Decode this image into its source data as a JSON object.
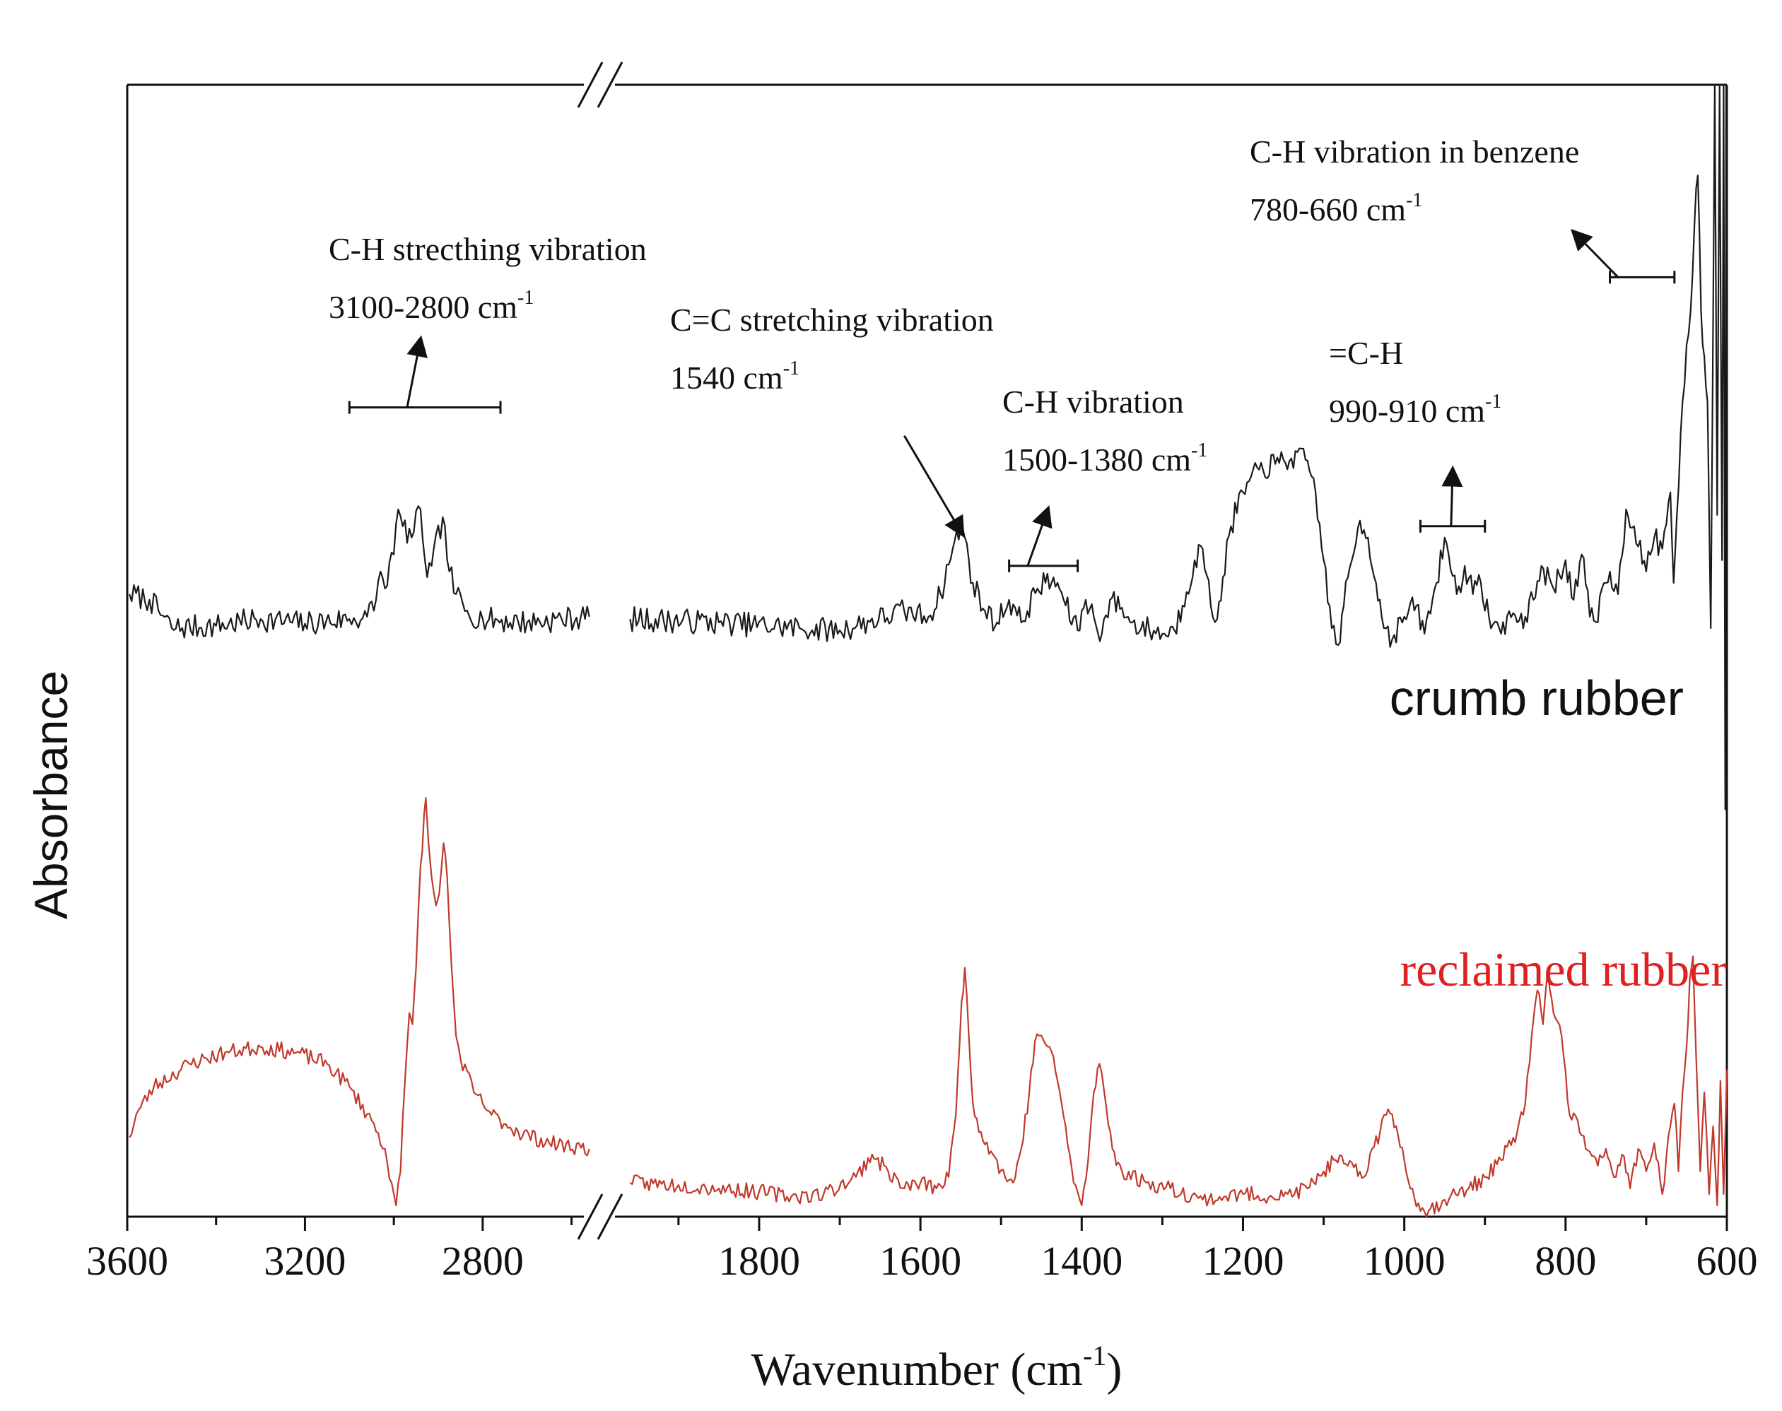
{
  "chart_data": {
    "type": "line",
    "xlabel": "Wavenumber (cm",
    "xlabel_sup": "-1",
    "xlabel_close": ")",
    "ylabel": "Absorbance",
    "x_reversed": true,
    "axis_break": {
      "from": 2550,
      "to": 1970
    },
    "x_segments": [
      [
        3600,
        2550
      ],
      [
        1970,
        600
      ]
    ],
    "x_ticks": [
      {
        "value": 3600,
        "label": "3600"
      },
      {
        "value": 3200,
        "label": "3200"
      },
      {
        "value": 2800,
        "label": "2800"
      },
      {
        "value": 1800,
        "label": "1800"
      },
      {
        "value": 1600,
        "label": "1600"
      },
      {
        "value": 1400,
        "label": "1400"
      },
      {
        "value": 1200,
        "label": "1200"
      },
      {
        "value": 1000,
        "label": "1000"
      },
      {
        "value": 800,
        "label": "800"
      },
      {
        "value": 600,
        "label": "600"
      }
    ],
    "minor_ticks": [
      3400,
      3000,
      2600,
      1900,
      1700,
      1500,
      1300,
      1100,
      900,
      700
    ],
    "ylim": [
      0,
      100
    ],
    "series": [
      {
        "name": "crumb rubber",
        "label": "crumb rubber",
        "color": "#1a1a1a",
        "noise": 1.1,
        "seed": 7,
        "points": [
          [
            3595,
            55.0
          ],
          [
            3550,
            54.5
          ],
          [
            3500,
            52.0
          ],
          [
            3400,
            52.2
          ],
          [
            3300,
            52.8
          ],
          [
            3200,
            52.4
          ],
          [
            3100,
            52.8
          ],
          [
            3060,
            53.0
          ],
          [
            3040,
            54.5
          ],
          [
            3030,
            57.0
          ],
          [
            3020,
            55.5
          ],
          [
            3010,
            57.8
          ],
          [
            3000,
            58.5
          ],
          [
            2990,
            62.5
          ],
          [
            2980,
            61.0
          ],
          [
            2960,
            60.0
          ],
          [
            2940,
            62.5
          ],
          [
            2925,
            56.5
          ],
          [
            2915,
            57.5
          ],
          [
            2890,
            61.8
          ],
          [
            2875,
            57.0
          ],
          [
            2860,
            55.0
          ],
          [
            2840,
            53.5
          ],
          [
            2800,
            52.8
          ],
          [
            2700,
            52.5
          ],
          [
            2560,
            53.0
          ],
          null,
          [
            1960,
            52.8
          ],
          [
            1850,
            52.5
          ],
          [
            1750,
            52.0
          ],
          [
            1700,
            51.8
          ],
          [
            1620,
            53.5
          ],
          [
            1590,
            53.0
          ],
          [
            1575,
            55.0
          ],
          [
            1560,
            59.0
          ],
          [
            1550,
            61.0
          ],
          [
            1545,
            60.0
          ],
          [
            1535,
            56.0
          ],
          [
            1520,
            53.5
          ],
          [
            1505,
            52.5
          ],
          [
            1490,
            54.5
          ],
          [
            1475,
            52.5
          ],
          [
            1455,
            55.5
          ],
          [
            1445,
            56.0
          ],
          [
            1430,
            56.0
          ],
          [
            1420,
            54.0
          ],
          [
            1405,
            51.8
          ],
          [
            1395,
            54.5
          ],
          [
            1385,
            53.0
          ],
          [
            1375,
            51.5
          ],
          [
            1365,
            54.5
          ],
          [
            1350,
            53.8
          ],
          [
            1340,
            52.5
          ],
          [
            1300,
            51.5
          ],
          [
            1285,
            51.8
          ],
          [
            1275,
            54.0
          ],
          [
            1260,
            58.0
          ],
          [
            1250,
            59.0
          ],
          [
            1240,
            54.0
          ],
          [
            1232,
            52.8
          ],
          [
            1225,
            56.5
          ],
          [
            1215,
            61.0
          ],
          [
            1200,
            64.0
          ],
          [
            1180,
            66.0
          ],
          [
            1160,
            66.5
          ],
          [
            1140,
            67.0
          ],
          [
            1120,
            66.8
          ],
          [
            1110,
            64.0
          ],
          [
            1100,
            58.0
          ],
          [
            1090,
            52.0
          ],
          [
            1082,
            50.5
          ],
          [
            1075,
            54.0
          ],
          [
            1065,
            58.0
          ],
          [
            1055,
            61.5
          ],
          [
            1045,
            60.0
          ],
          [
            1035,
            56.0
          ],
          [
            1028,
            53.0
          ],
          [
            1015,
            51.0
          ],
          [
            1000,
            53.0
          ],
          [
            985,
            54.0
          ],
          [
            975,
            51.5
          ],
          [
            960,
            56.0
          ],
          [
            950,
            60.0
          ],
          [
            945,
            58.5
          ],
          [
            935,
            55.0
          ],
          [
            925,
            57.5
          ],
          [
            915,
            55.0
          ],
          [
            905,
            56.0
          ],
          [
            895,
            53.0
          ],
          [
            880,
            51.5
          ],
          [
            870,
            53.5
          ],
          [
            860,
            52.5
          ],
          [
            850,
            53.0
          ],
          [
            840,
            54.5
          ],
          [
            830,
            57.5
          ],
          [
            815,
            55.5
          ],
          [
            800,
            58.0
          ],
          [
            790,
            54.5
          ],
          [
            780,
            58.5
          ],
          [
            770,
            53.0
          ],
          [
            760,
            52.5
          ],
          [
            755,
            55.5
          ],
          [
            745,
            57.0
          ],
          [
            735,
            55.0
          ],
          [
            725,
            62.5
          ],
          [
            715,
            61.0
          ],
          [
            700,
            57.0
          ],
          [
            690,
            60.0
          ],
          [
            680,
            59.0
          ],
          [
            670,
            64.0
          ],
          [
            666,
            56.0
          ],
          [
            662,
            62.0
          ],
          [
            655,
            72.0
          ],
          [
            645,
            80.0
          ],
          [
            640,
            88.0
          ],
          [
            636,
            92.0
          ],
          [
            632,
            80.0
          ],
          [
            628,
            76.0
          ],
          [
            624,
            72.0
          ],
          [
            620,
            52.0
          ],
          [
            618,
            70.0
          ],
          [
            615,
            100.0
          ],
          [
            612,
            62.0
          ],
          [
            609,
            100.0
          ],
          [
            606,
            58.0
          ],
          [
            604,
            100.0
          ],
          [
            602,
            36.0
          ],
          [
            601,
            100.0
          ],
          [
            600,
            100.0
          ]
        ]
      },
      {
        "name": "reclaimed rubber",
        "label": "reclaimed rubber",
        "color": "#c0392b",
        "noise": 0.7,
        "seed": 23,
        "points": [
          [
            3595,
            7.0
          ],
          [
            3580,
            9.0
          ],
          [
            3540,
            11.5
          ],
          [
            3460,
            13.5
          ],
          [
            3380,
            14.5
          ],
          [
            3300,
            15.0
          ],
          [
            3220,
            14.5
          ],
          [
            3150,
            13.5
          ],
          [
            3100,
            11.5
          ],
          [
            3050,
            8.5
          ],
          [
            3020,
            6.0
          ],
          [
            3005,
            3.0
          ],
          [
            2995,
            1.0
          ],
          [
            2985,
            4.0
          ],
          [
            2975,
            12.0
          ],
          [
            2965,
            18.0
          ],
          [
            2958,
            17.0
          ],
          [
            2950,
            22.0
          ],
          [
            2940,
            31.0
          ],
          [
            2928,
            37.0
          ],
          [
            2922,
            33.0
          ],
          [
            2915,
            30.0
          ],
          [
            2905,
            27.5
          ],
          [
            2898,
            28.5
          ],
          [
            2888,
            33.0
          ],
          [
            2880,
            30.0
          ],
          [
            2870,
            22.0
          ],
          [
            2860,
            16.0
          ],
          [
            2850,
            14.0
          ],
          [
            2820,
            11.0
          ],
          [
            2780,
            9.0
          ],
          [
            2720,
            7.5
          ],
          [
            2650,
            6.5
          ],
          [
            2560,
            6.0
          ],
          null,
          [
            1960,
            3.0
          ],
          [
            1900,
            2.8
          ],
          [
            1850,
            2.5
          ],
          [
            1800,
            2.2
          ],
          [
            1760,
            1.8
          ],
          [
            1720,
            2.0
          ],
          [
            1680,
            3.5
          ],
          [
            1660,
            5.5
          ],
          [
            1640,
            4.0
          ],
          [
            1620,
            2.5
          ],
          [
            1600,
            3.0
          ],
          [
            1580,
            2.5
          ],
          [
            1565,
            3.5
          ],
          [
            1556,
            9.0
          ],
          [
            1549,
            19.0
          ],
          [
            1545,
            22.0
          ],
          [
            1540,
            16.0
          ],
          [
            1535,
            10.0
          ],
          [
            1525,
            7.5
          ],
          [
            1510,
            5.5
          ],
          [
            1495,
            3.5
          ],
          [
            1485,
            3.0
          ],
          [
            1475,
            6.0
          ],
          [
            1465,
            11.0
          ],
          [
            1458,
            15.5
          ],
          [
            1450,
            16.0
          ],
          [
            1440,
            15.0
          ],
          [
            1430,
            12.0
          ],
          [
            1420,
            8.0
          ],
          [
            1410,
            3.0
          ],
          [
            1400,
            1.0
          ],
          [
            1392,
            5.0
          ],
          [
            1385,
            11.0
          ],
          [
            1378,
            13.5
          ],
          [
            1372,
            11.0
          ],
          [
            1362,
            6.0
          ],
          [
            1350,
            4.0
          ],
          [
            1320,
            3.0
          ],
          [
            1290,
            2.5
          ],
          [
            1250,
            1.5
          ],
          [
            1200,
            2.0
          ],
          [
            1150,
            1.8
          ],
          [
            1120,
            2.5
          ],
          [
            1100,
            4.0
          ],
          [
            1085,
            5.0
          ],
          [
            1070,
            4.5
          ],
          [
            1050,
            3.5
          ],
          [
            1040,
            6.0
          ],
          [
            1030,
            7.5
          ],
          [
            1020,
            9.5
          ],
          [
            1010,
            8.0
          ],
          [
            1000,
            5.0
          ],
          [
            990,
            2.5
          ],
          [
            980,
            0.5
          ],
          [
            970,
            0.5
          ],
          [
            950,
            1.5
          ],
          [
            920,
            2.5
          ],
          [
            900,
            3.5
          ],
          [
            880,
            5.0
          ],
          [
            860,
            7.5
          ],
          [
            850,
            10.0
          ],
          [
            842,
            16.0
          ],
          [
            835,
            20.0
          ],
          [
            828,
            17.0
          ],
          [
            822,
            22.0
          ],
          [
            815,
            18.0
          ],
          [
            805,
            16.0
          ],
          [
            795,
            9.0
          ],
          [
            785,
            8.5
          ],
          [
            775,
            6.0
          ],
          [
            760,
            4.5
          ],
          [
            750,
            6.0
          ],
          [
            740,
            3.5
          ],
          [
            730,
            5.5
          ],
          [
            720,
            2.5
          ],
          [
            710,
            6.0
          ],
          [
            700,
            4.0
          ],
          [
            690,
            6.5
          ],
          [
            680,
            2.0
          ],
          [
            670,
            8.0
          ],
          [
            665,
            10.0
          ],
          [
            660,
            4.0
          ],
          [
            655,
            11.0
          ],
          [
            650,
            15.0
          ],
          [
            646,
            21.0
          ],
          [
            642,
            23.0
          ],
          [
            638,
            14.0
          ],
          [
            633,
            4.0
          ],
          [
            628,
            11.0
          ],
          [
            622,
            2.0
          ],
          [
            617,
            8.0
          ],
          [
            612,
            1.0
          ],
          [
            608,
            12.0
          ],
          [
            604,
            2.0
          ],
          [
            600,
            13.0
          ]
        ]
      }
    ],
    "annotations": [
      {
        "id": "ch-stretch",
        "line1": "C-H strecthing vibration",
        "line2_main": "3100-2800 cm",
        "line2_sup": "-1",
        "range": [
          3100,
          2760
        ],
        "range_y": 71.5,
        "arrow_from": [
          2970,
          71.5
        ],
        "arrow_to": [
          2940,
          77.5
        ]
      },
      {
        "id": "cc-stretch",
        "line1": "C=C stretching vibration",
        "line2_main": "1540 cm",
        "line2_sup": "-1",
        "arrow_from": [
          1620,
          69.0
        ],
        "arrow_to": [
          1548,
          60.3
        ]
      },
      {
        "id": "ch-vib",
        "line1": "C-H vibration",
        "line2_main": "1500-1380 cm",
        "line2_sup": "-1",
        "range": [
          1490,
          1405
        ],
        "range_y": 57.5,
        "arrow_from": [
          1467,
          57.5
        ],
        "arrow_to": [
          1442,
          62.5
        ]
      },
      {
        "id": "eq-ch",
        "line1": "=C-H",
        "line2_main": "990-910 cm",
        "line2_sup": "-1",
        "range": [
          980,
          900
        ],
        "range_y": 61.0,
        "arrow_from": [
          942,
          61.0
        ],
        "arrow_to": [
          940,
          66.0
        ]
      },
      {
        "id": "ch-benzene",
        "line1": "C-H vibration in benzene",
        "line2_main": "780-660 cm",
        "line2_sup": "-1",
        "range": [
          745,
          665
        ],
        "range_y": 83.0,
        "arrow_from": [
          735,
          83.0
        ],
        "arrow_to": [
          790,
          87.0
        ]
      }
    ]
  }
}
